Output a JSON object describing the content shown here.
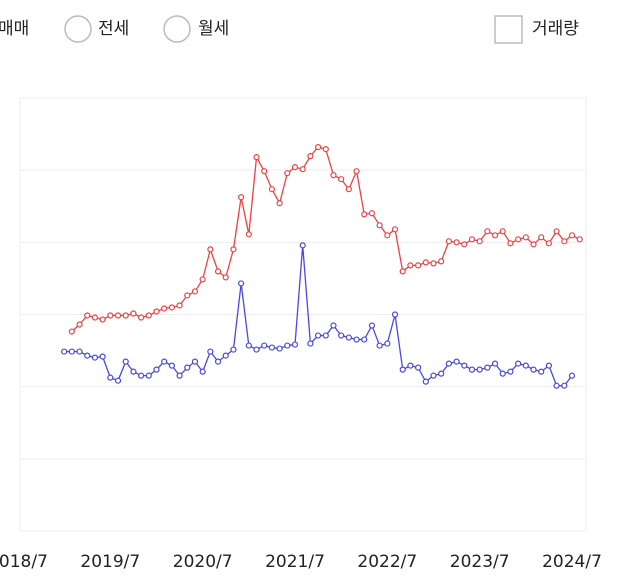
{
  "controls": {
    "options": [
      "매매",
      "전세",
      "월세"
    ],
    "checkbox": "거래량"
  },
  "chart_data": {
    "type": "line",
    "categories": [
      "2018/7",
      null,
      null,
      null,
      null,
      null,
      null,
      null,
      null,
      null,
      null,
      null,
      "2019/7",
      null,
      null,
      null,
      null,
      null,
      null,
      null,
      null,
      null,
      null,
      null,
      "2020/7",
      null,
      null,
      null,
      null,
      null,
      null,
      null,
      null,
      null,
      null,
      null,
      "2021/7",
      null,
      null,
      null,
      null,
      null,
      null,
      null,
      null,
      null,
      null,
      null,
      "2022/7",
      null,
      null,
      null,
      null,
      null,
      null,
      null,
      null,
      null,
      null,
      null,
      "2023/7",
      null,
      null,
      null,
      null,
      null,
      null,
      null,
      null,
      null,
      null,
      null,
      "2024/7",
      null
    ],
    "series": [
      {
        "color": "#ee4040",
        "values": [
          null,
          null,
          null,
          null,
          null,
          null,
          null,
          199,
          206,
          215,
          213,
          211,
          215,
          215,
          215,
          217,
          213,
          215,
          219,
          222,
          223,
          225,
          235,
          239,
          251,
          281,
          259,
          253,
          281,
          333,
          296,
          373,
          359,
          341,
          327,
          357,
          363,
          361,
          374,
          383,
          381,
          355,
          351,
          341,
          359,
          316,
          317,
          305,
          295,
          301,
          259,
          265,
          265,
          268,
          267,
          269,
          289,
          288,
          286,
          291,
          289,
          299,
          295,
          299,
          287,
          291,
          293,
          286,
          293,
          287,
          299,
          289,
          295,
          291
        ]
      },
      {
        "color": "#4848e6",
        "values": [
          null,
          null,
          null,
          null,
          null,
          null,
          179,
          179,
          179,
          175,
          173,
          174,
          153,
          150,
          169,
          159,
          155,
          155,
          161,
          169,
          165,
          155,
          163,
          169,
          159,
          179,
          169,
          175,
          181,
          247,
          185,
          181,
          185,
          183,
          182,
          185,
          186,
          285,
          187,
          195,
          195,
          205,
          195,
          193,
          191,
          191,
          205,
          185,
          187,
          216,
          161,
          165,
          163,
          149,
          155,
          157,
          167,
          169,
          165,
          161,
          161,
          163,
          167,
          157,
          159,
          167,
          165,
          161,
          159,
          165,
          145,
          145,
          155,
          null
        ]
      }
    ],
    "ylim": [
      0,
      432
    ],
    "yticks": [
      0,
      72,
      144,
      216,
      288,
      360,
      432
    ],
    "grid": true
  }
}
